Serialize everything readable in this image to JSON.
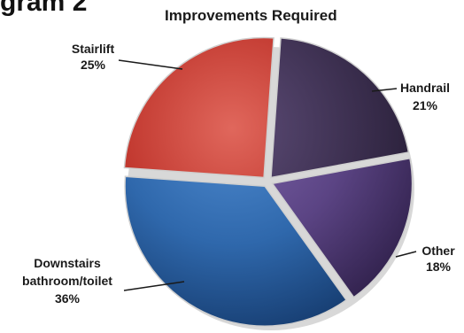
{
  "heading": "gram 2",
  "chart_data": {
    "type": "pie",
    "title": "Improvements Required",
    "slices": [
      {
        "label": "Stairlift",
        "value": 25,
        "display": "25%",
        "color": "#c0362d",
        "color_light": "#e0675c",
        "color_dark": "#8a1d17"
      },
      {
        "label": "Handrail",
        "value": 21,
        "display": "21%",
        "color": "#3e3152",
        "color_light": "#5e4d78",
        "color_dark": "#241b33"
      },
      {
        "label": "Other",
        "value": 18,
        "display": "18%",
        "color": "#5b4484",
        "color_light": "#7d64aa",
        "color_dark": "#33234f"
      },
      {
        "label": "Downstairs bathroom/toilet",
        "label_lines": [
          "Downstairs",
          "bathroom/toilet"
        ],
        "value": 36,
        "display": "36%",
        "color": "#2f68ac",
        "color_light": "#4f8bd0",
        "color_dark": "#173e72"
      }
    ],
    "legend": "none"
  }
}
